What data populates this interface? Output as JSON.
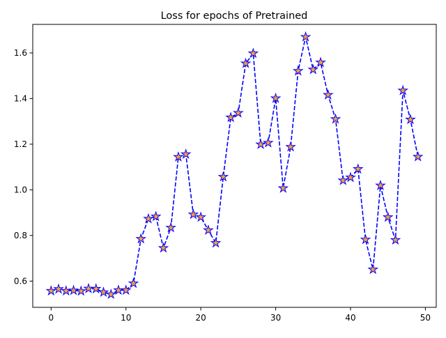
{
  "chart_data": {
    "type": "line",
    "title": "Loss for epochs of Pretrained",
    "xlabel": "",
    "ylabel": "",
    "xlim": [
      -2.45,
      51.45
    ],
    "ylim": [
      0.485,
      1.725
    ],
    "x_ticks": [
      0,
      10,
      20,
      30,
      40,
      50
    ],
    "y_ticks": [
      0.6,
      0.8,
      1.0,
      1.2,
      1.4,
      1.6
    ],
    "y_tick_labels": [
      "0.6",
      "0.8",
      "1.0",
      "1.2",
      "1.4",
      "1.6"
    ],
    "grid": false,
    "series": [
      {
        "line_color": "#0000ff",
        "line_style": "dashed",
        "marker": "star",
        "marker_face": "#ff9f3f",
        "marker_edge": "#0000ff",
        "x": [
          0,
          1,
          2,
          3,
          4,
          5,
          6,
          7,
          8,
          9,
          10,
          11,
          12,
          13,
          14,
          15,
          16,
          17,
          18,
          19,
          20,
          21,
          22,
          23,
          24,
          25,
          26,
          27,
          28,
          29,
          30,
          31,
          32,
          33,
          34,
          35,
          36,
          37,
          38,
          39,
          40,
          41,
          42,
          43,
          44,
          45,
          46,
          47,
          48,
          49
        ],
        "values": [
          0.557,
          0.565,
          0.557,
          0.559,
          0.556,
          0.567,
          0.566,
          0.551,
          0.542,
          0.56,
          0.56,
          0.59,
          0.785,
          0.873,
          0.883,
          0.745,
          0.834,
          1.144,
          1.156,
          0.892,
          0.88,
          0.823,
          0.767,
          1.057,
          1.317,
          1.337,
          1.554,
          1.598,
          1.199,
          1.206,
          1.401,
          1.007,
          1.188,
          1.521,
          1.67,
          1.527,
          1.558,
          1.416,
          1.31,
          1.041,
          1.054,
          1.091,
          0.782,
          0.651,
          1.019,
          0.88,
          0.78,
          1.435,
          1.308,
          1.145
        ]
      }
    ]
  }
}
